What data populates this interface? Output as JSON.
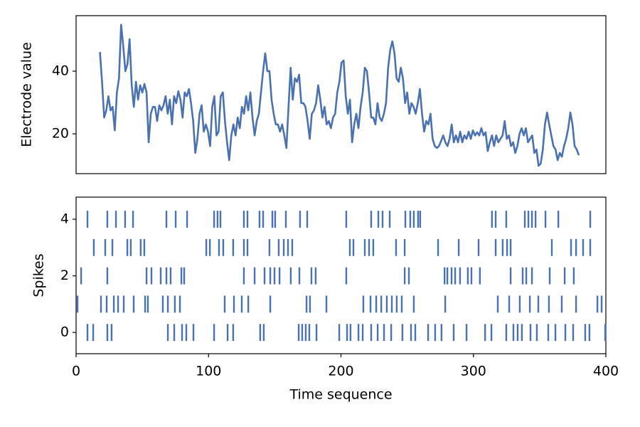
{
  "chart_data": [
    {
      "type": "line",
      "ylabel": "Electrode value",
      "color": "#4a72b0",
      "xlim": [
        0,
        400
      ],
      "ylim": [
        7.3,
        57.7
      ],
      "yticks": [
        20,
        40
      ],
      "x": [
        18,
        19.6,
        21.2,
        22.8,
        24.4,
        26,
        27.6,
        29.2,
        30.8,
        32.4,
        34,
        35.6,
        37.2,
        38.8,
        40.4,
        42,
        43.6,
        45.2,
        46.8,
        48.4,
        50,
        51.6,
        53.2,
        54.8,
        56.4,
        58,
        59.6,
        61.2,
        62.8,
        64.4,
        66,
        67.6,
        69.2,
        70.8,
        72.4,
        74,
        75.6,
        77.2,
        78.8,
        80.4,
        82,
        83.6,
        85.2,
        86.8,
        88.4,
        90,
        91.6,
        93.2,
        94.8,
        96.4,
        98,
        99.6,
        101.2,
        102.8,
        104.4,
        106,
        107.6,
        109.2,
        110.8,
        112.4,
        114,
        115.6,
        117.2,
        118.8,
        120.4,
        122,
        123.6,
        125.2,
        126.8,
        128.4,
        130,
        131.6,
        133.2,
        134.8,
        136.4,
        138,
        139.6,
        141.2,
        142.8,
        144.4,
        146,
        147.6,
        149.2,
        150.8,
        152.4,
        154,
        155.6,
        157.2,
        158.8,
        160.4,
        162,
        163.6,
        165.2,
        166.8,
        168.4,
        170,
        171.6,
        173.2,
        174.8,
        176.4,
        178,
        179.6,
        181.2,
        182.8,
        184.4,
        186,
        187.6,
        189.2,
        190.8,
        192.4,
        194,
        195.6,
        197.2,
        198.8,
        200.4,
        202,
        203.6,
        205.2,
        206.8,
        208.4,
        210,
        211.6,
        213.2,
        214.8,
        216.4,
        218,
        219.6,
        221.2,
        222.8,
        224.4,
        226,
        227.6,
        229.2,
        230.8,
        232.4,
        234,
        235.6,
        237.2,
        238.8,
        240.4,
        242,
        243.6,
        245.2,
        246.8,
        248.4,
        250,
        251.6,
        253.2,
        254.8,
        256.4,
        258,
        259.6,
        261.2,
        262.8,
        264.4,
        266,
        267.6,
        269.2,
        270.8,
        272.4,
        274,
        275.6,
        277.2,
        278.8,
        280.4,
        282,
        283.6,
        285.2,
        286.8,
        288.4,
        290,
        291.6,
        293.2,
        294.8,
        296.4,
        298,
        299.6,
        301.2,
        302.8,
        304.4,
        306,
        307.6,
        309.2,
        310.8,
        312.4,
        314,
        315.6,
        317.2,
        318.8,
        320.4,
        322,
        323.6,
        325.2,
        326.8,
        328.4,
        330,
        331.6,
        333.2,
        334.8,
        336.4,
        338,
        339.6,
        341.2,
        342.8,
        344.4,
        346,
        347.6,
        349.2,
        350.8,
        352.4,
        354,
        355.6,
        357.2,
        358.8,
        360.4,
        362,
        363.6,
        365.2,
        366.8,
        368.4,
        370,
        371.6,
        373.2,
        374.8,
        376.4,
        378,
        379.6
      ],
      "values": [
        46.1,
        36.6,
        25.2,
        27.5,
        32.0,
        27.5,
        28.6,
        21.1,
        33.2,
        37.7,
        54.8,
        48.0,
        40.0,
        42.3,
        50.2,
        35.5,
        28.6,
        36.6,
        30.9,
        35.5,
        33.2,
        35.9,
        33.2,
        17.3,
        26.4,
        28.6,
        28.6,
        24.1,
        29.1,
        27.5,
        29.1,
        32.0,
        26.4,
        30.9,
        23.0,
        32.0,
        29.8,
        33.6,
        30.9,
        25.2,
        33.2,
        32.0,
        34.3,
        29.8,
        24.1,
        13.9,
        18.4,
        26.4,
        29.1,
        20.7,
        23.0,
        20.7,
        16.1,
        28.6,
        32.0,
        19.5,
        20.7,
        32.0,
        33.2,
        24.1,
        17.3,
        11.6,
        19.5,
        23.0,
        19.5,
        25.2,
        21.8,
        28.6,
        26.4,
        32.0,
        27.5,
        33.2,
        25.2,
        19.5,
        24.1,
        26.4,
        33.2,
        40.0,
        45.7,
        40.0,
        40.0,
        30.9,
        26.4,
        23.0,
        23.0,
        20.7,
        23.0,
        19.5,
        15.5,
        28.6,
        41.1,
        30.9,
        37.7,
        36.6,
        38.9,
        29.8,
        29.8,
        28.6,
        24.1,
        18.4,
        26.4,
        27.5,
        29.8,
        35.5,
        30.9,
        25.2,
        28.6,
        23.0,
        24.1,
        21.8,
        25.2,
        26.4,
        33.2,
        36.6,
        42.7,
        43.4,
        32.0,
        26.4,
        30.9,
        17.3,
        23.0,
        26.4,
        21.8,
        28.6,
        33.2,
        41.1,
        40.0,
        33.2,
        25.2,
        25.2,
        23.0,
        29.8,
        25.2,
        24.1,
        26.4,
        29.8,
        41.1,
        46.8,
        49.5,
        45.7,
        37.7,
        36.6,
        41.1,
        37.7,
        29.8,
        33.2,
        26.4,
        29.8,
        28.6,
        26.4,
        29.8,
        34.3,
        26.4,
        20.7,
        24.1,
        23.0,
        26.4,
        18.4,
        16.1,
        15.5,
        16.1,
        17.7,
        19.5,
        17.3,
        16.1,
        18.4,
        23.0,
        17.3,
        19.5,
        17.3,
        20.7,
        17.3,
        19.5,
        18.4,
        20.7,
        18.4,
        21.1,
        19.5,
        20.5,
        19.5,
        21.8,
        19.5,
        20.5,
        14.5,
        17.3,
        19.5,
        16.1,
        19.5,
        17.3,
        18.4,
        19.5,
        24.1,
        18.4,
        19.5,
        16.1,
        17.3,
        13.9,
        16.1,
        20.0,
        21.8,
        19.5,
        21.8,
        17.3,
        18.4,
        19.5,
        13.9,
        15.0,
        9.8,
        10.5,
        15.0,
        23.0,
        26.8,
        23.0,
        19.5,
        16.1,
        15.0,
        11.6,
        13.9,
        12.7,
        16.1,
        18.4,
        21.8,
        26.8,
        23.0,
        16.1,
        15.0,
        13.2
      ]
    },
    {
      "type": "eventplot",
      "xlabel": "Time sequence",
      "ylabel": "Spikes",
      "color": "#4a72b0",
      "xlim": [
        0,
        400
      ],
      "xticks": [
        0,
        100,
        200,
        300,
        400
      ],
      "ylim": [
        -0.75,
        4.78
      ],
      "yticks": [
        0,
        2,
        4
      ],
      "positions": [
        0,
        1,
        2,
        3,
        4
      ],
      "events": [
        [
          8.6,
          12.9,
          23.6,
          26.8,
          69.3,
          74.1,
          80.0,
          83.2,
          88.6,
          104.2,
          114.4,
          118.6,
          139.0,
          141.7,
          168.1,
          170.7,
          173.4,
          176.1,
          181.5,
          198.7,
          204.6,
          207.2,
          213.2,
          216.4,
          222.8,
          227.7,
          232.5,
          237.9,
          246.4,
          252.9,
          256.1,
          265.8,
          271.1,
          275.9,
          285.1,
          294.8,
          308.8,
          313.6,
          324.8,
          330.2,
          333.4,
          336.6,
          343.1,
          347.9,
          356.5,
          361.9,
          369.4,
          375.3,
          384.4,
          387.6,
          399.5
        ],
        [
          1.1,
          18.8,
          23.1,
          28.5,
          31.7,
          36.0,
          43.5,
          52.1,
          54.2,
          65.5,
          69.3,
          74.6,
          78.4,
          112.2,
          119.2,
          125.1,
          130.0,
          146.6,
          174.0,
          176.6,
          189.0,
          216.9,
          222.3,
          226.6,
          230.4,
          234.6,
          238.4,
          242.1,
          245.9,
          255.0,
          278.7,
          318.4,
          327.0,
          335.0,
          342.6,
          349.0,
          357.0,
          366.7,
          377.5,
          393.6,
          396.8
        ],
        [
          3.8,
          23.6,
          53.2,
          56.9,
          63.9,
          68.2,
          71.4,
          79.5,
          81.6,
          126.7,
          134.8,
          142.3,
          146.6,
          149.8,
          153.6,
          162.1,
          168.6,
          177.7,
          180.9,
          204.0,
          248.1,
          251.3,
          278.2,
          280.3,
          283.5,
          286.2,
          289.9,
          295.8,
          298.5,
          304.9,
          328.1,
          337.2,
          339.9,
          344.2,
          357.6,
          368.9,
          375.8
        ],
        [
          13.4,
          22.0,
          27.4,
          38.7,
          41.3,
          48.8,
          51.5,
          98.3,
          101.0,
          107.9,
          111.1,
          118.6,
          126.7,
          129.4,
          146.0,
          153.0,
          156.8,
          160.0,
          163.2,
          206.7,
          209.4,
          218.0,
          221.2,
          224.4,
          241.6,
          248.1,
          273.3,
          288.9,
          303.9,
          316.8,
          322.1,
          325.4,
          328.1,
          359.2,
          373.7,
          377.5,
          382.8,
          388.2
        ],
        [
          8.6,
          23.6,
          30.1,
          37.0,
          43.0,
          68.2,
          75.2,
          83.8,
          104.2,
          106.8,
          109.0,
          126.7,
          129.4,
          138.5,
          141.2,
          148.2,
          150.3,
          158.4,
          169.1,
          174.5,
          204.0,
          222.8,
          228.2,
          231.4,
          236.8,
          248.6,
          252.3,
          255.0,
          258.2,
          259.8,
          314.0,
          316.8,
          324.8,
          338.8,
          341.5,
          344.2,
          346.9,
          354.4,
          364.1,
          388.2
        ]
      ]
    }
  ]
}
